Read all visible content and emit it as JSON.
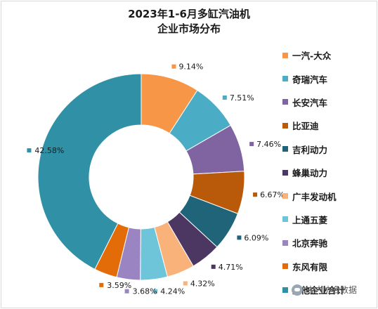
{
  "chart_data": {
    "type": "pie",
    "donut": true,
    "title": [
      "2023年1-6月多缸汽油机",
      "企业市场分布"
    ],
    "categories": [
      "一汽-大众",
      "奇瑞汽车",
      "长安汽车",
      "比亚迪",
      "吉利动力",
      "蜂巢动力",
      "广丰发动机",
      "上通五菱",
      "北京奔驰",
      "东风有限",
      "其他企业合计"
    ],
    "values": [
      9.14,
      7.51,
      7.46,
      6.67,
      6.09,
      4.71,
      4.32,
      4.24,
      3.68,
      3.59,
      42.58
    ],
    "labels": [
      "9.14%",
      "7.51%",
      "7.46%",
      "6.67%",
      "6.09%",
      "4.71%",
      "4.32%",
      "4.24%",
      "3.68%",
      "3.59%",
      "42.58%"
    ],
    "colors": [
      "#f79646",
      "#4bacc6",
      "#8064a2",
      "#b85a0a",
      "#1f6478",
      "#4b3762",
      "#f9b27a",
      "#6ec5da",
      "#9a84c2",
      "#e36c09",
      "#3091a6"
    ],
    "legend": "right"
  },
  "watermark": "中内协会数据"
}
